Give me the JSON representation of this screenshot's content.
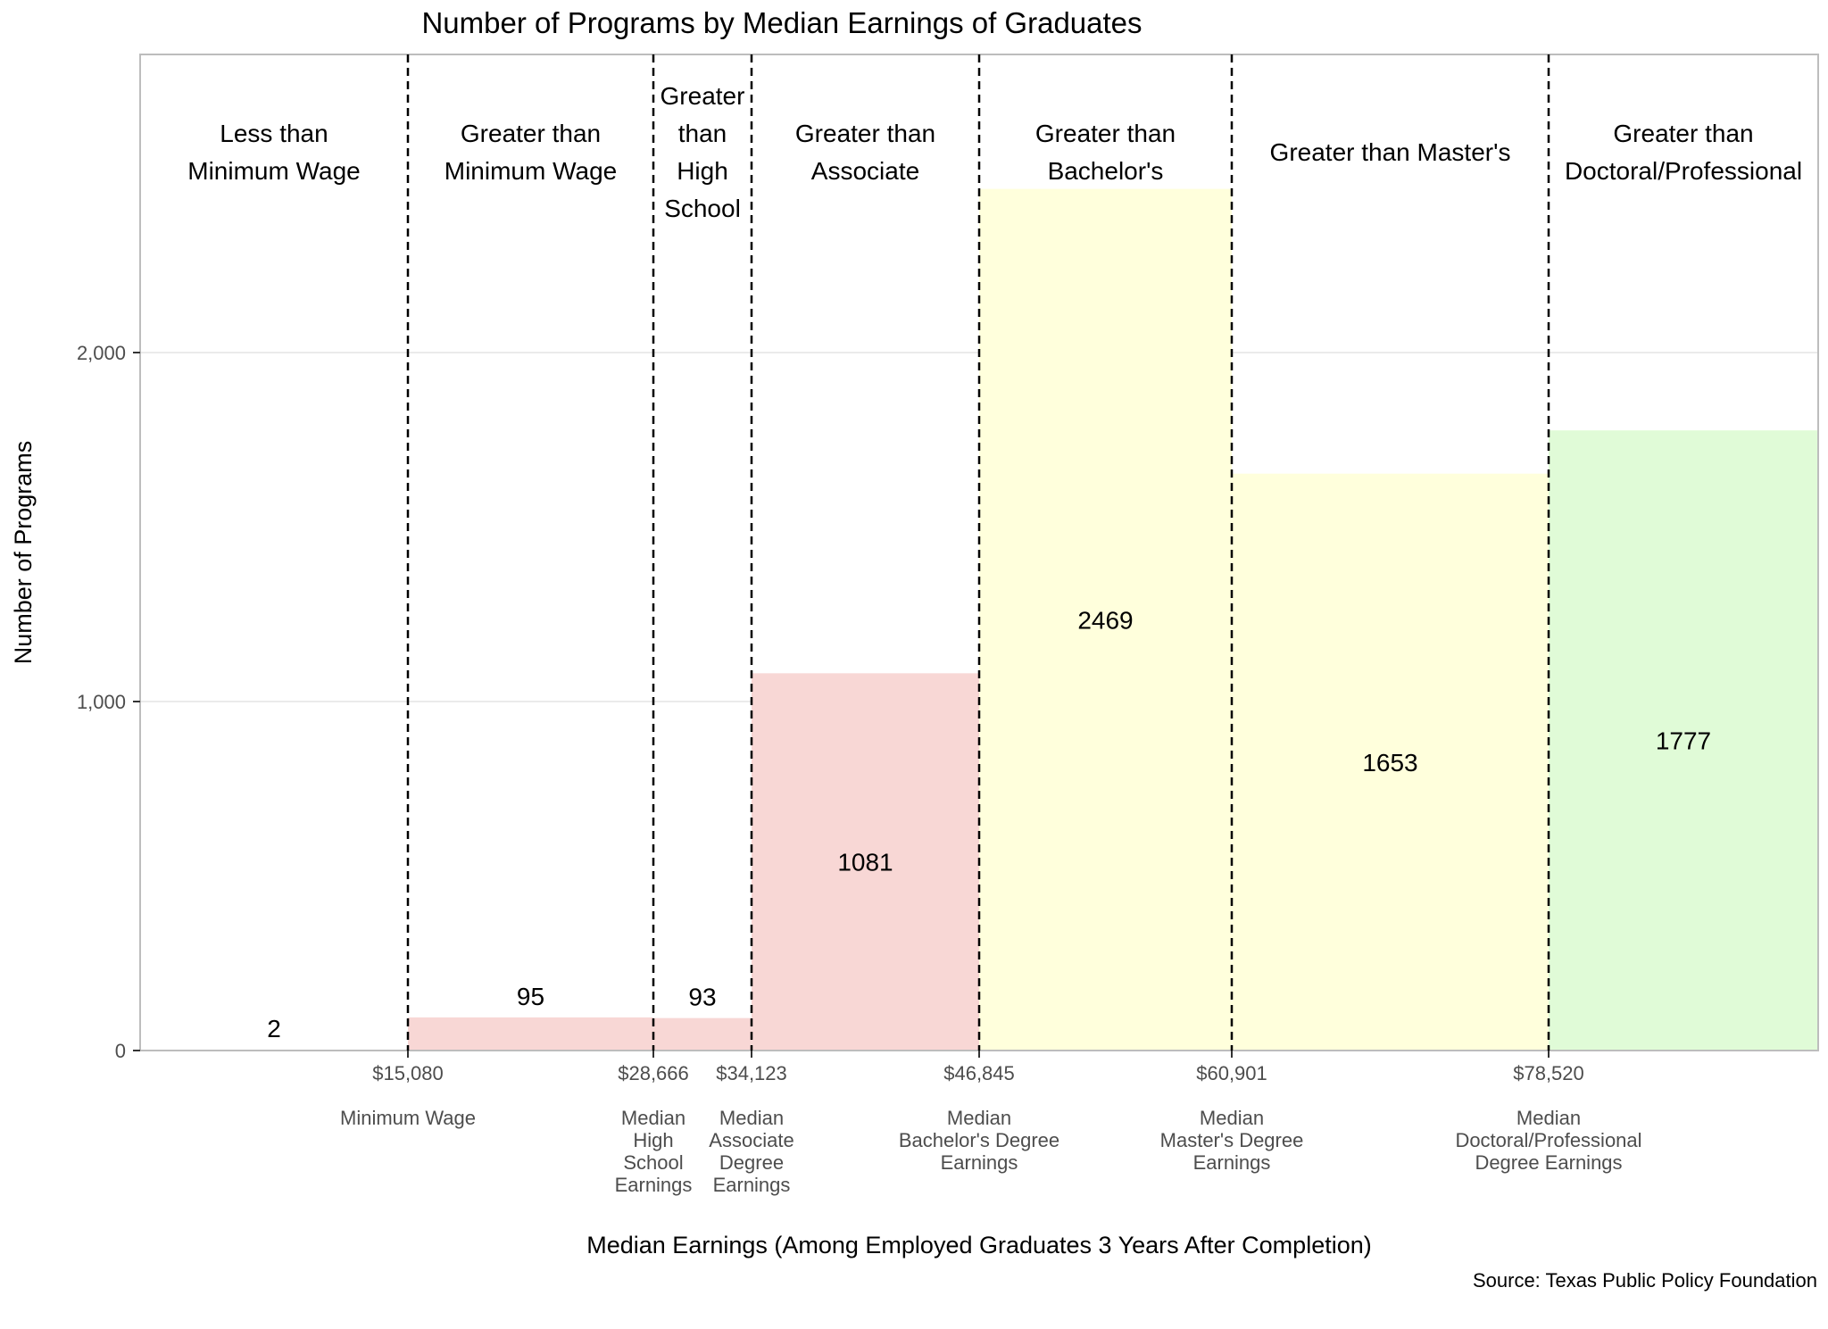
{
  "chart_data": {
    "type": "bar",
    "title": "Number of Programs by Median Earnings of Graduates",
    "xlabel": "Median Earnings (Among Employed Graduates 3 Years After Completion)",
    "ylabel": "Number of Programs",
    "source": "Source: Texas Public Policy Foundation",
    "ylim": [
      0,
      2850
    ],
    "grid": true,
    "y_ticks": [
      {
        "value": 0,
        "label": "0"
      },
      {
        "value": 1000,
        "label": "1,000"
      },
      {
        "value": 2000,
        "label": "2,000"
      }
    ],
    "thresholds": [
      {
        "value": 15080,
        "label": "$15,080",
        "desc": [
          "Minimum Wage"
        ]
      },
      {
        "value": 28666,
        "label": "$28,666",
        "desc": [
          "Median",
          "High",
          "School",
          "Earnings"
        ]
      },
      {
        "value": 34123,
        "label": "$34,123",
        "desc": [
          "Median",
          "Associate",
          "Degree",
          "Earnings"
        ]
      },
      {
        "value": 46845,
        "label": "$46,845",
        "desc": [
          "Median",
          "Bachelor's Degree",
          "Earnings"
        ]
      },
      {
        "value": 60901,
        "label": "$60,901",
        "desc": [
          "Median",
          "Master's Degree",
          "Earnings"
        ]
      },
      {
        "value": 78520,
        "label": "$78,520",
        "desc": [
          "Median",
          "Doctoral/Professional",
          "Degree Earnings"
        ]
      }
    ],
    "categories": [
      {
        "label": [
          "Less than",
          "Minimum Wage"
        ],
        "value": 2,
        "value_label": "2",
        "color": "#ffffff"
      },
      {
        "label": [
          "Greater than",
          "Minimum Wage"
        ],
        "value": 95,
        "value_label": "95",
        "color": "#f8d7d5"
      },
      {
        "label": [
          "Greater",
          "than",
          "High",
          "School"
        ],
        "value": 93,
        "value_label": "93",
        "color": "#f8d7d5"
      },
      {
        "label": [
          "Greater than",
          "Associate"
        ],
        "value": 1081,
        "value_label": "1081",
        "color": "#f8d7d5"
      },
      {
        "label": [
          "Greater than",
          "Bachelor's"
        ],
        "value": 2469,
        "value_label": "2469",
        "color": "#ffffdc"
      },
      {
        "label": [
          "Greater than Master's"
        ],
        "value": 1653,
        "value_label": "1653",
        "color": "#ffffdc"
      },
      {
        "label": [
          "Greater than",
          "Doctoral/Professional"
        ],
        "value": 1777,
        "value_label": "1777",
        "color": "#e0fbd7"
      }
    ],
    "colors": {
      "below_associate": "#f8d7d5",
      "bachelor_master": "#ffffdc",
      "doctoral": "#e0fbd7",
      "panel_border": "#bdbdbd",
      "gridline": "#ebebeb",
      "threshold_line": "#000000"
    }
  }
}
